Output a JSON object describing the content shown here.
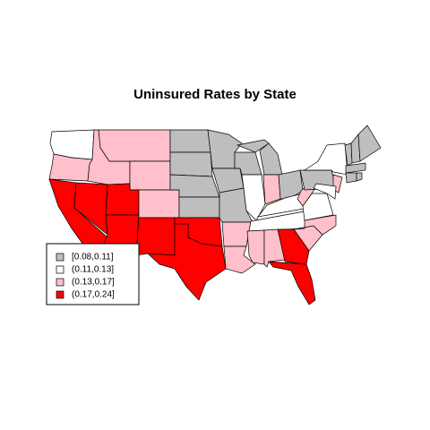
{
  "title": "Uninsured Rates by State",
  "legend": {
    "labels": [
      "[0.08,0.11]",
      "(0.11,0.13]",
      "(0.13,0.17]",
      "(0.17,0.24]"
    ],
    "colors": [
      "#bebebe",
      "#ffffff",
      "#ffc0cb",
      "#ff0000"
    ]
  },
  "regions": [
    1,
    2,
    3,
    3,
    2,
    2,
    2,
    3,
    3,
    2,
    3,
    0,
    0,
    0,
    0,
    3,
    3,
    0,
    0,
    0,
    2,
    2,
    0,
    1,
    0,
    0,
    2,
    0,
    1,
    1,
    2,
    2,
    3,
    3,
    2,
    2,
    1,
    2,
    0,
    1,
    2,
    1,
    0,
    0,
    0,
    0,
    0,
    0
  ]
}
